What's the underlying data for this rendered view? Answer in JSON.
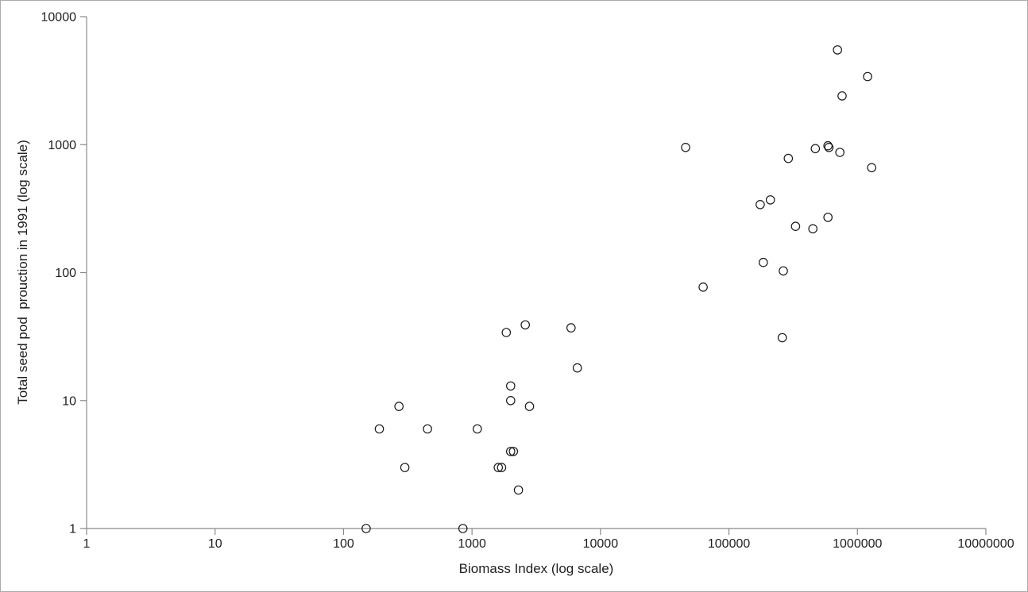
{
  "chart_data": {
    "type": "scatter",
    "title": "",
    "xlabel": "Biomass Index (log scale)",
    "ylabel": "Total seed pod  prouction in 1991 (log scale)",
    "x_scale": "log",
    "y_scale": "log",
    "xlim": [
      1,
      10000000
    ],
    "ylim": [
      1,
      10000
    ],
    "x_ticks": [
      1,
      10,
      100,
      1000,
      10000,
      100000,
      1000000,
      10000000
    ],
    "x_tick_labels": [
      "1",
      "10",
      "100",
      "1000",
      "10000",
      "100000",
      "1000000",
      "10000000"
    ],
    "y_ticks": [
      1,
      10,
      100,
      1000,
      10000
    ],
    "y_tick_labels": [
      "1",
      "10",
      "100",
      "1000",
      "10000"
    ],
    "grid": false,
    "legend": null,
    "marker": "open-circle",
    "series_name": "seed-pod-production",
    "points": [
      [
        150,
        1
      ],
      [
        190,
        6
      ],
      [
        270,
        9
      ],
      [
        300,
        3
      ],
      [
        450,
        6
      ],
      [
        850,
        1
      ],
      [
        1100,
        6
      ],
      [
        1600,
        3
      ],
      [
        1700,
        3
      ],
      [
        1850,
        34
      ],
      [
        2000,
        13
      ],
      [
        2000,
        10
      ],
      [
        2000,
        4
      ],
      [
        2100,
        4
      ],
      [
        2300,
        2
      ],
      [
        2600,
        39
      ],
      [
        2800,
        9
      ],
      [
        5900,
        37
      ],
      [
        6600,
        18
      ],
      [
        46000,
        950
      ],
      [
        63000,
        77
      ],
      [
        175000,
        340
      ],
      [
        185000,
        120
      ],
      [
        210000,
        370
      ],
      [
        260000,
        31
      ],
      [
        265000,
        103
      ],
      [
        290000,
        780
      ],
      [
        330000,
        230
      ],
      [
        450000,
        220
      ],
      [
        470000,
        930
      ],
      [
        590000,
        980
      ],
      [
        600000,
        950
      ],
      [
        590000,
        270
      ],
      [
        700000,
        5500
      ],
      [
        730000,
        870
      ],
      [
        760000,
        2400
      ],
      [
        1200000,
        3400
      ],
      [
        1290000,
        660
      ]
    ]
  },
  "colors": {
    "marker_stroke": "#1a1a1a",
    "axis_line": "#898989",
    "tick_text": "#1f1f1f",
    "background": "#ffffff",
    "border": "#ababab"
  }
}
